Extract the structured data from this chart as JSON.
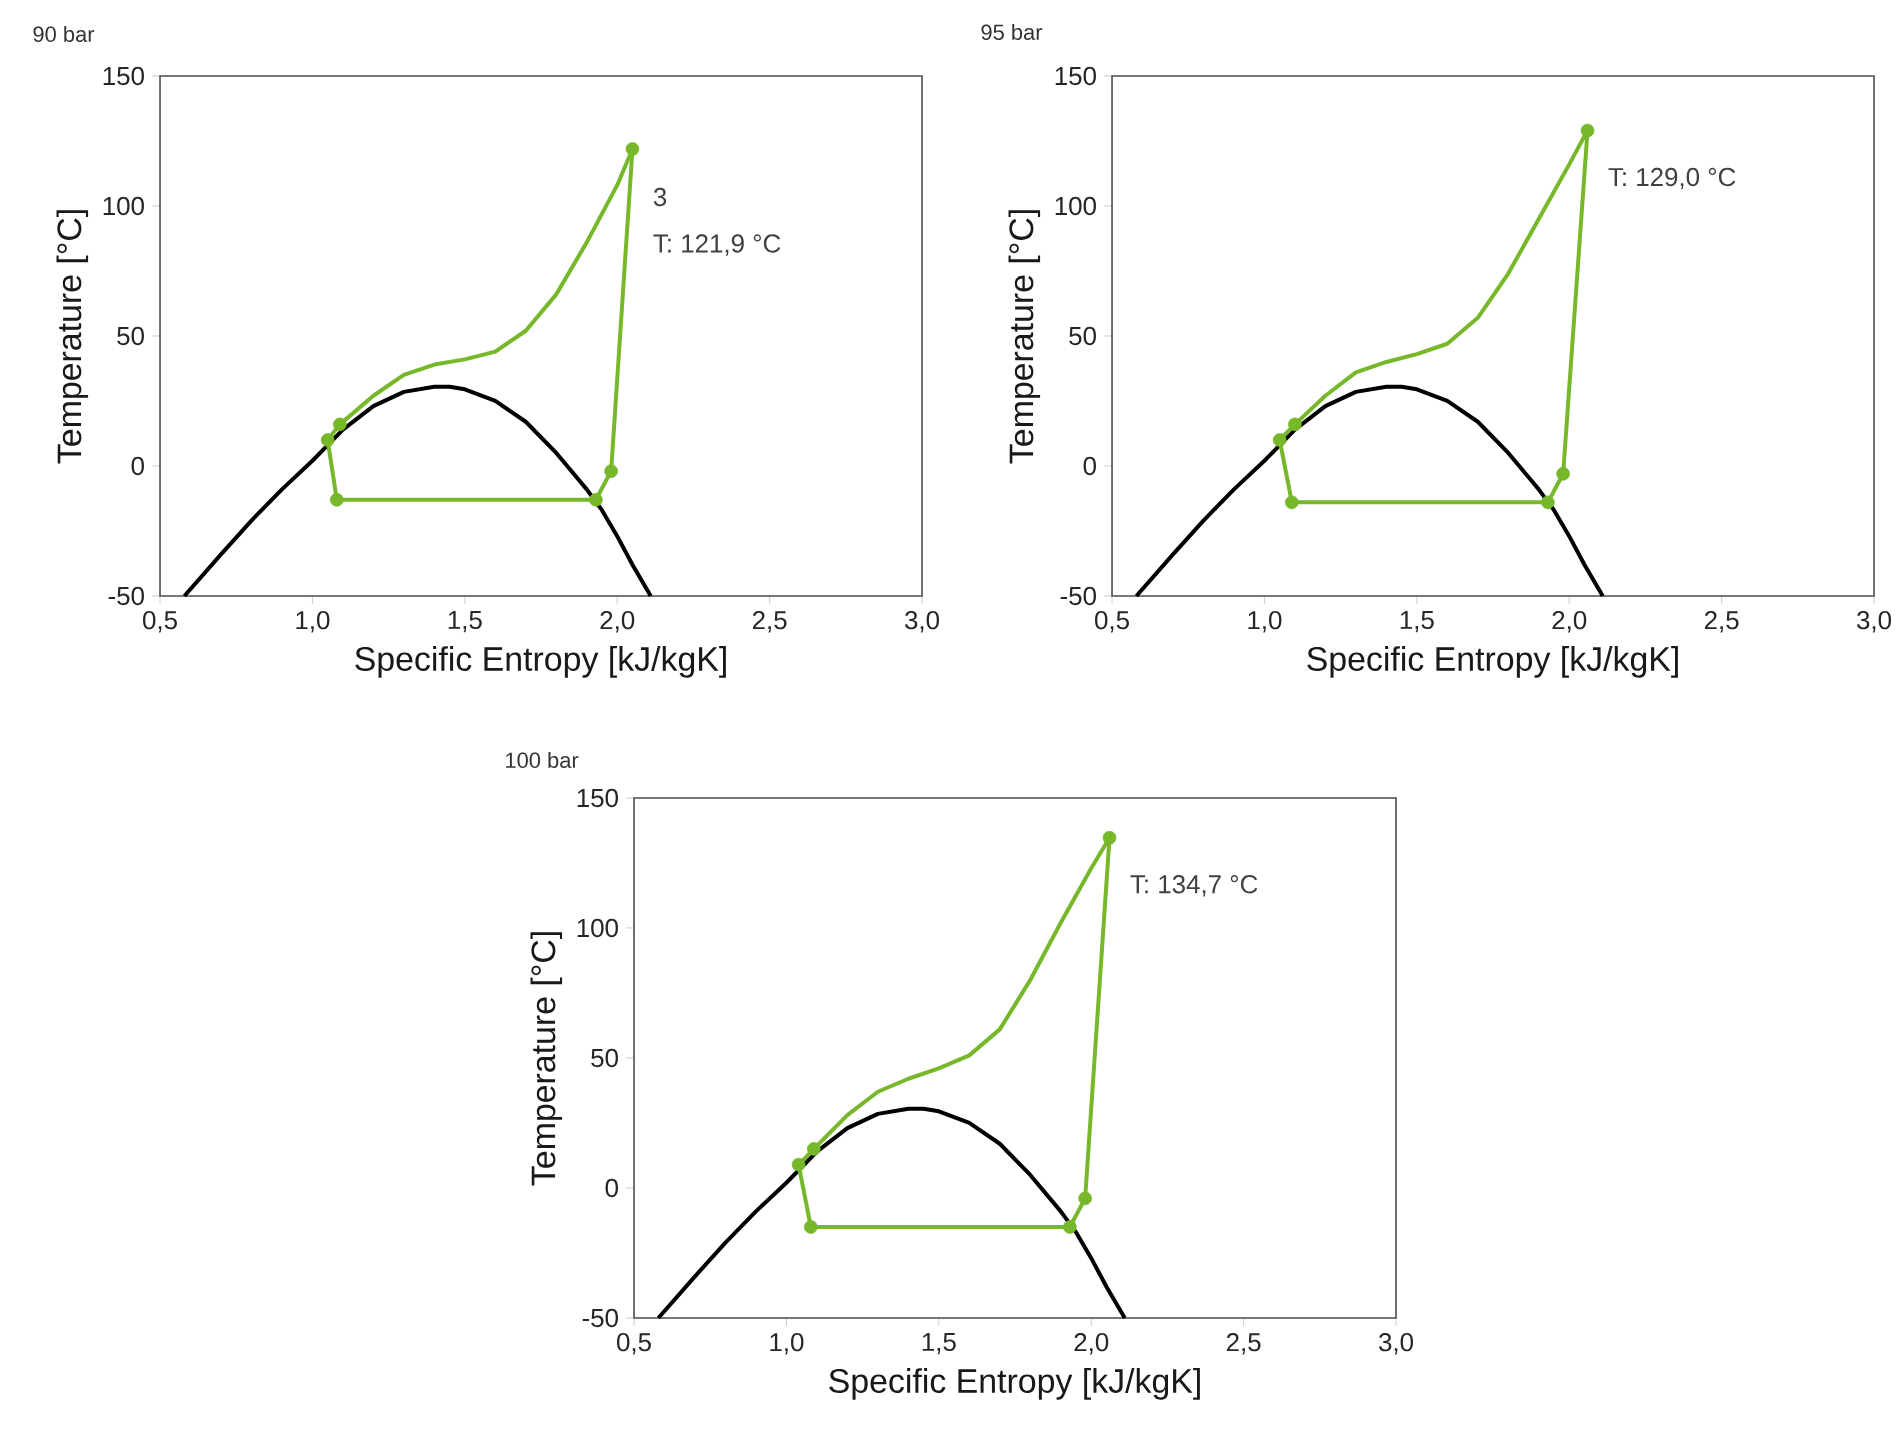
{
  "chart_data": [
    {
      "type": "line",
      "title": "90 bar",
      "xlabel": "Specific Entropy [kJ/kgK]",
      "ylabel": "Temperature [°C]",
      "xlim": [
        0.5,
        3.0
      ],
      "xticks": [
        {
          "value": 0.5,
          "label": "0,5"
        },
        {
          "value": 1.0,
          "label": "1,0"
        },
        {
          "value": 1.5,
          "label": "1,5"
        },
        {
          "value": 2.0,
          "label": "2,0"
        },
        {
          "value": 2.5,
          "label": "2,5"
        },
        {
          "value": 3.0,
          "label": "3,0"
        }
      ],
      "ylim": [
        -50,
        150
      ],
      "yticks": [
        -50,
        0,
        50,
        100,
        150
      ],
      "series": [
        {
          "type": "line",
          "color": "#000000",
          "marker": "none",
          "x": [
            0.58,
            0.7,
            0.8,
            0.9,
            1.0,
            1.1,
            1.2,
            1.3,
            1.4,
            1.45,
            1.5,
            1.6,
            1.7,
            1.8,
            1.9,
            1.95,
            2.0,
            2.05,
            2.11
          ],
          "values": [
            -50,
            -34,
            -21,
            -9,
            2,
            14,
            23,
            28.5,
            30.5,
            30.5,
            29.5,
            25,
            17,
            5,
            -9,
            -17,
            -27,
            -38,
            -50
          ]
        },
        {
          "type": "line",
          "color": "#76b82a",
          "marker": "none",
          "x": [
            1.05,
            1.09,
            1.2,
            1.3,
            1.4,
            1.5,
            1.6,
            1.7,
            1.8,
            1.9,
            2.0,
            2.05
          ],
          "values": [
            10,
            16,
            27,
            35,
            39,
            41,
            44,
            52,
            66,
            86,
            108,
            121.9
          ]
        },
        {
          "type": "line",
          "color": "#76b82a",
          "marker": "none",
          "x": [
            2.05,
            1.98,
            1.93,
            1.08
          ],
          "values": [
            121.9,
            -2,
            -13,
            -13
          ]
        },
        {
          "type": "line",
          "color": "#76b82a",
          "marker": "none",
          "x": [
            1.08,
            1.05
          ],
          "values": [
            -13,
            10
          ]
        },
        {
          "type": "scatter",
          "color": "#76b82a",
          "marker": "circle",
          "x": [
            1.05,
            1.09,
            2.05,
            1.98,
            1.93,
            1.08
          ],
          "values": [
            10,
            16,
            121.9,
            -2,
            -13,
            -13
          ]
        }
      ],
      "annotations": [
        "3",
        "T: 121,9 °C"
      ]
    },
    {
      "type": "line",
      "title": "95 bar",
      "xlabel": "Specific Entropy [kJ/kgK]",
      "ylabel": "Temperature [°C]",
      "xlim": [
        0.5,
        3.0
      ],
      "xticks": [
        {
          "value": 0.5,
          "label": "0,5"
        },
        {
          "value": 1.0,
          "label": "1,0"
        },
        {
          "value": 1.5,
          "label": "1,5"
        },
        {
          "value": 2.0,
          "label": "2,0"
        },
        {
          "value": 2.5,
          "label": "2,5"
        },
        {
          "value": 3.0,
          "label": "3,0"
        }
      ],
      "ylim": [
        -50,
        150
      ],
      "yticks": [
        -50,
        0,
        50,
        100,
        150
      ],
      "series": [
        {
          "type": "line",
          "color": "#000000",
          "marker": "none",
          "x": [
            0.58,
            0.7,
            0.8,
            0.9,
            1.0,
            1.1,
            1.2,
            1.3,
            1.4,
            1.45,
            1.5,
            1.6,
            1.7,
            1.8,
            1.9,
            1.95,
            2.0,
            2.05,
            2.11
          ],
          "values": [
            -50,
            -34,
            -21,
            -9,
            2,
            14,
            23,
            28.5,
            30.5,
            30.5,
            29.5,
            25,
            17,
            5,
            -9,
            -17,
            -27,
            -38,
            -50
          ]
        },
        {
          "type": "line",
          "color": "#76b82a",
          "marker": "none",
          "x": [
            1.05,
            1.1,
            1.2,
            1.3,
            1.4,
            1.5,
            1.6,
            1.7,
            1.8,
            1.9,
            2.0,
            2.06
          ],
          "values": [
            10,
            16,
            27,
            36,
            40,
            43,
            47,
            57,
            74,
            95,
            116,
            129.0
          ]
        },
        {
          "type": "line",
          "color": "#76b82a",
          "marker": "none",
          "x": [
            2.06,
            1.98,
            1.93,
            1.09
          ],
          "values": [
            129.0,
            -3,
            -14,
            -14
          ]
        },
        {
          "type": "line",
          "color": "#76b82a",
          "marker": "none",
          "x": [
            1.09,
            1.05
          ],
          "values": [
            -14,
            10
          ]
        },
        {
          "type": "scatter",
          "color": "#76b82a",
          "marker": "circle",
          "x": [
            1.05,
            1.1,
            2.06,
            1.98,
            1.93,
            1.09
          ],
          "values": [
            10,
            16,
            129.0,
            -3,
            -14,
            -14
          ]
        }
      ],
      "annotations": [
        "T: 129,0 °C"
      ]
    },
    {
      "type": "line",
      "title": "100 bar",
      "xlabel": "Specific Entropy [kJ/kgK]",
      "ylabel": "Temperature [°C]",
      "xlim": [
        0.5,
        3.0
      ],
      "xticks": [
        {
          "value": 0.5,
          "label": "0,5"
        },
        {
          "value": 1.0,
          "label": "1,0"
        },
        {
          "value": 1.5,
          "label": "1,5"
        },
        {
          "value": 2.0,
          "label": "2,0"
        },
        {
          "value": 2.5,
          "label": "2,5"
        },
        {
          "value": 3.0,
          "label": "3,0"
        }
      ],
      "ylim": [
        -50,
        150
      ],
      "yticks": [
        -50,
        0,
        50,
        100,
        150
      ],
      "series": [
        {
          "type": "line",
          "color": "#000000",
          "marker": "none",
          "x": [
            0.58,
            0.7,
            0.8,
            0.9,
            1.0,
            1.1,
            1.2,
            1.3,
            1.4,
            1.45,
            1.5,
            1.6,
            1.7,
            1.8,
            1.9,
            1.95,
            2.0,
            2.05,
            2.11
          ],
          "values": [
            -50,
            -34,
            -21,
            -9,
            2,
            14,
            23,
            28.5,
            30.5,
            30.5,
            29.5,
            25,
            17,
            5,
            -9,
            -17,
            -27,
            -38,
            -50
          ]
        },
        {
          "type": "line",
          "color": "#76b82a",
          "marker": "none",
          "x": [
            1.04,
            1.09,
            1.2,
            1.3,
            1.4,
            1.5,
            1.6,
            1.7,
            1.8,
            1.9,
            2.0,
            2.06
          ],
          "values": [
            9,
            15,
            28,
            37,
            42,
            46,
            51,
            61,
            80,
            102,
            123,
            134.7
          ]
        },
        {
          "type": "line",
          "color": "#76b82a",
          "marker": "none",
          "x": [
            2.06,
            1.98,
            1.93,
            1.08
          ],
          "values": [
            134.7,
            -4,
            -15,
            -15
          ]
        },
        {
          "type": "line",
          "color": "#76b82a",
          "marker": "none",
          "x": [
            1.08,
            1.04
          ],
          "values": [
            -15,
            9
          ]
        },
        {
          "type": "scatter",
          "color": "#76b82a",
          "marker": "circle",
          "x": [
            1.04,
            1.09,
            2.06,
            1.98,
            1.93,
            1.08
          ],
          "values": [
            9,
            15,
            134.7,
            -4,
            -15,
            -15
          ]
        }
      ],
      "annotations": [
        "T: 134,7 °C"
      ]
    }
  ]
}
